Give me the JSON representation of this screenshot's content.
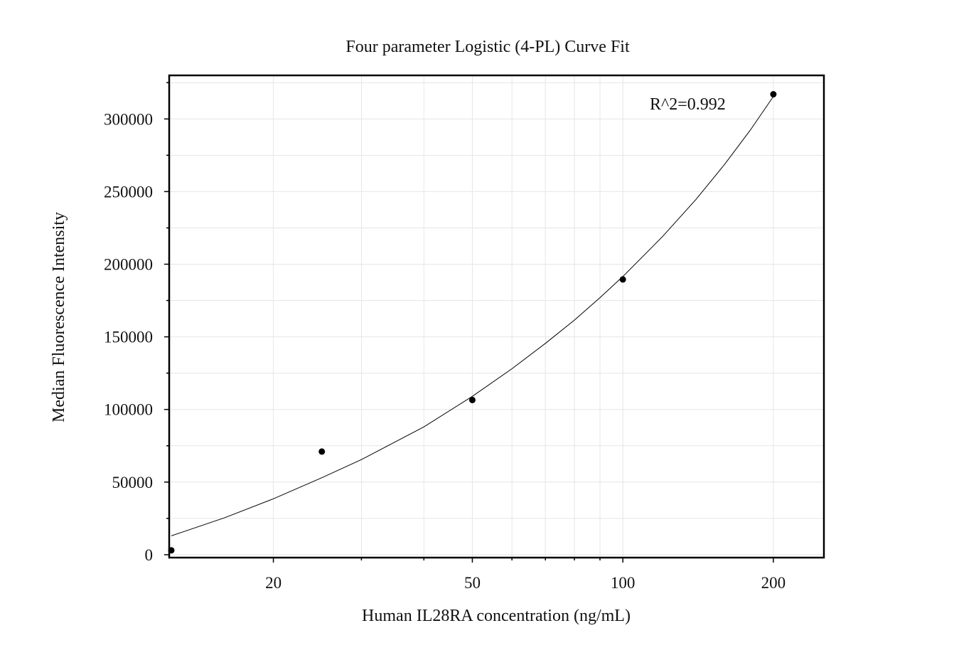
{
  "chart_data": {
    "type": "scatter",
    "title": "Four parameter Logistic (4-PL) Curve Fit",
    "xlabel": "Human IL28RA concentration (ng/mL)",
    "ylabel": "Median Fluorescence Intensity",
    "x_scale": "log",
    "xlim": [
      12.5,
      220
    ],
    "ylim": [
      -2000,
      330000
    ],
    "x_ticks": [
      20,
      50,
      100,
      200
    ],
    "x_tick_labels": [
      "20",
      "50",
      "100",
      "200"
    ],
    "y_ticks": [
      0,
      50000,
      100000,
      150000,
      200000,
      250000,
      300000
    ],
    "y_tick_labels": [
      "0",
      "50000",
      "100000",
      "150000",
      "200000",
      "250000",
      "300000"
    ],
    "grid": true,
    "annotation": "R^2=0.992",
    "series": [
      {
        "type": "scatter",
        "x": [
          12.5,
          25,
          50,
          100,
          200
        ],
        "y": [
          3000,
          71000,
          106500,
          189500,
          317000
        ]
      },
      {
        "type": "line",
        "x": [
          12.5,
          16,
          20,
          25,
          30,
          40,
          50,
          60,
          70,
          80,
          90,
          100,
          120,
          140,
          160,
          180,
          200
        ],
        "y": [
          13000,
          25500,
          38500,
          53000,
          65500,
          88000,
          109000,
          128000,
          145500,
          161500,
          177000,
          191500,
          219000,
          244500,
          269000,
          292500,
          315500
        ]
      }
    ],
    "colors": {
      "points": "#000000",
      "curve": "#000000",
      "grid": "#e6e6e6",
      "frame": "#000000"
    }
  }
}
